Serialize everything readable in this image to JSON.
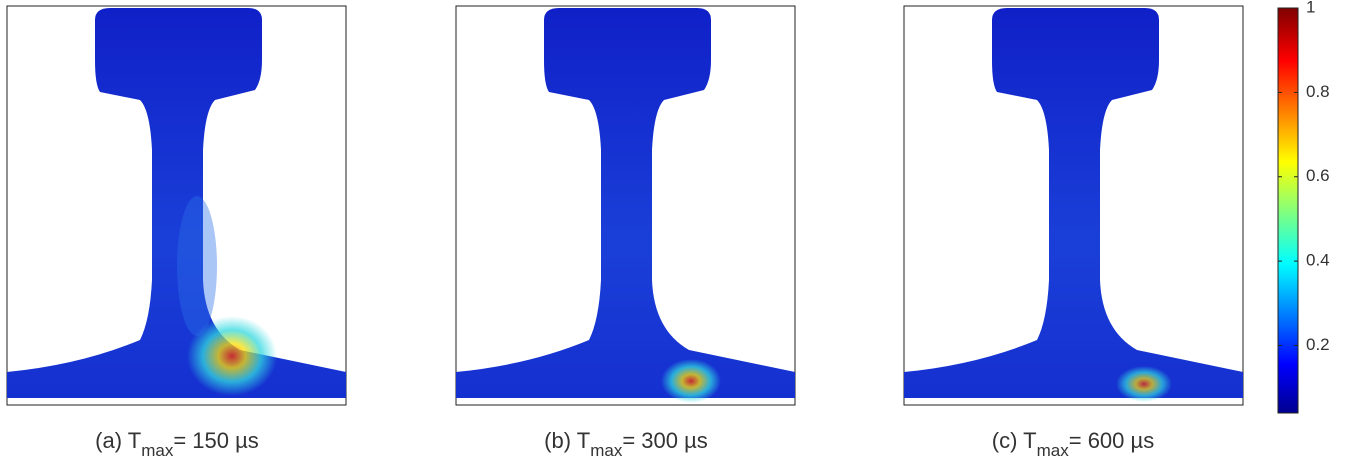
{
  "panels": [
    {
      "label": "(a) T",
      "subscript": "max",
      "suffix": "= 150 µs"
    },
    {
      "label": "(b) T",
      "subscript": "max",
      "suffix": "= 300 µs"
    },
    {
      "label": "(c) T",
      "subscript": "max",
      "suffix": "= 600 µs"
    }
  ],
  "colorbar": {
    "lim": [
      0.04,
      1
    ],
    "ticks": [
      0.2,
      0.4,
      0.6,
      0.8,
      1
    ]
  }
}
